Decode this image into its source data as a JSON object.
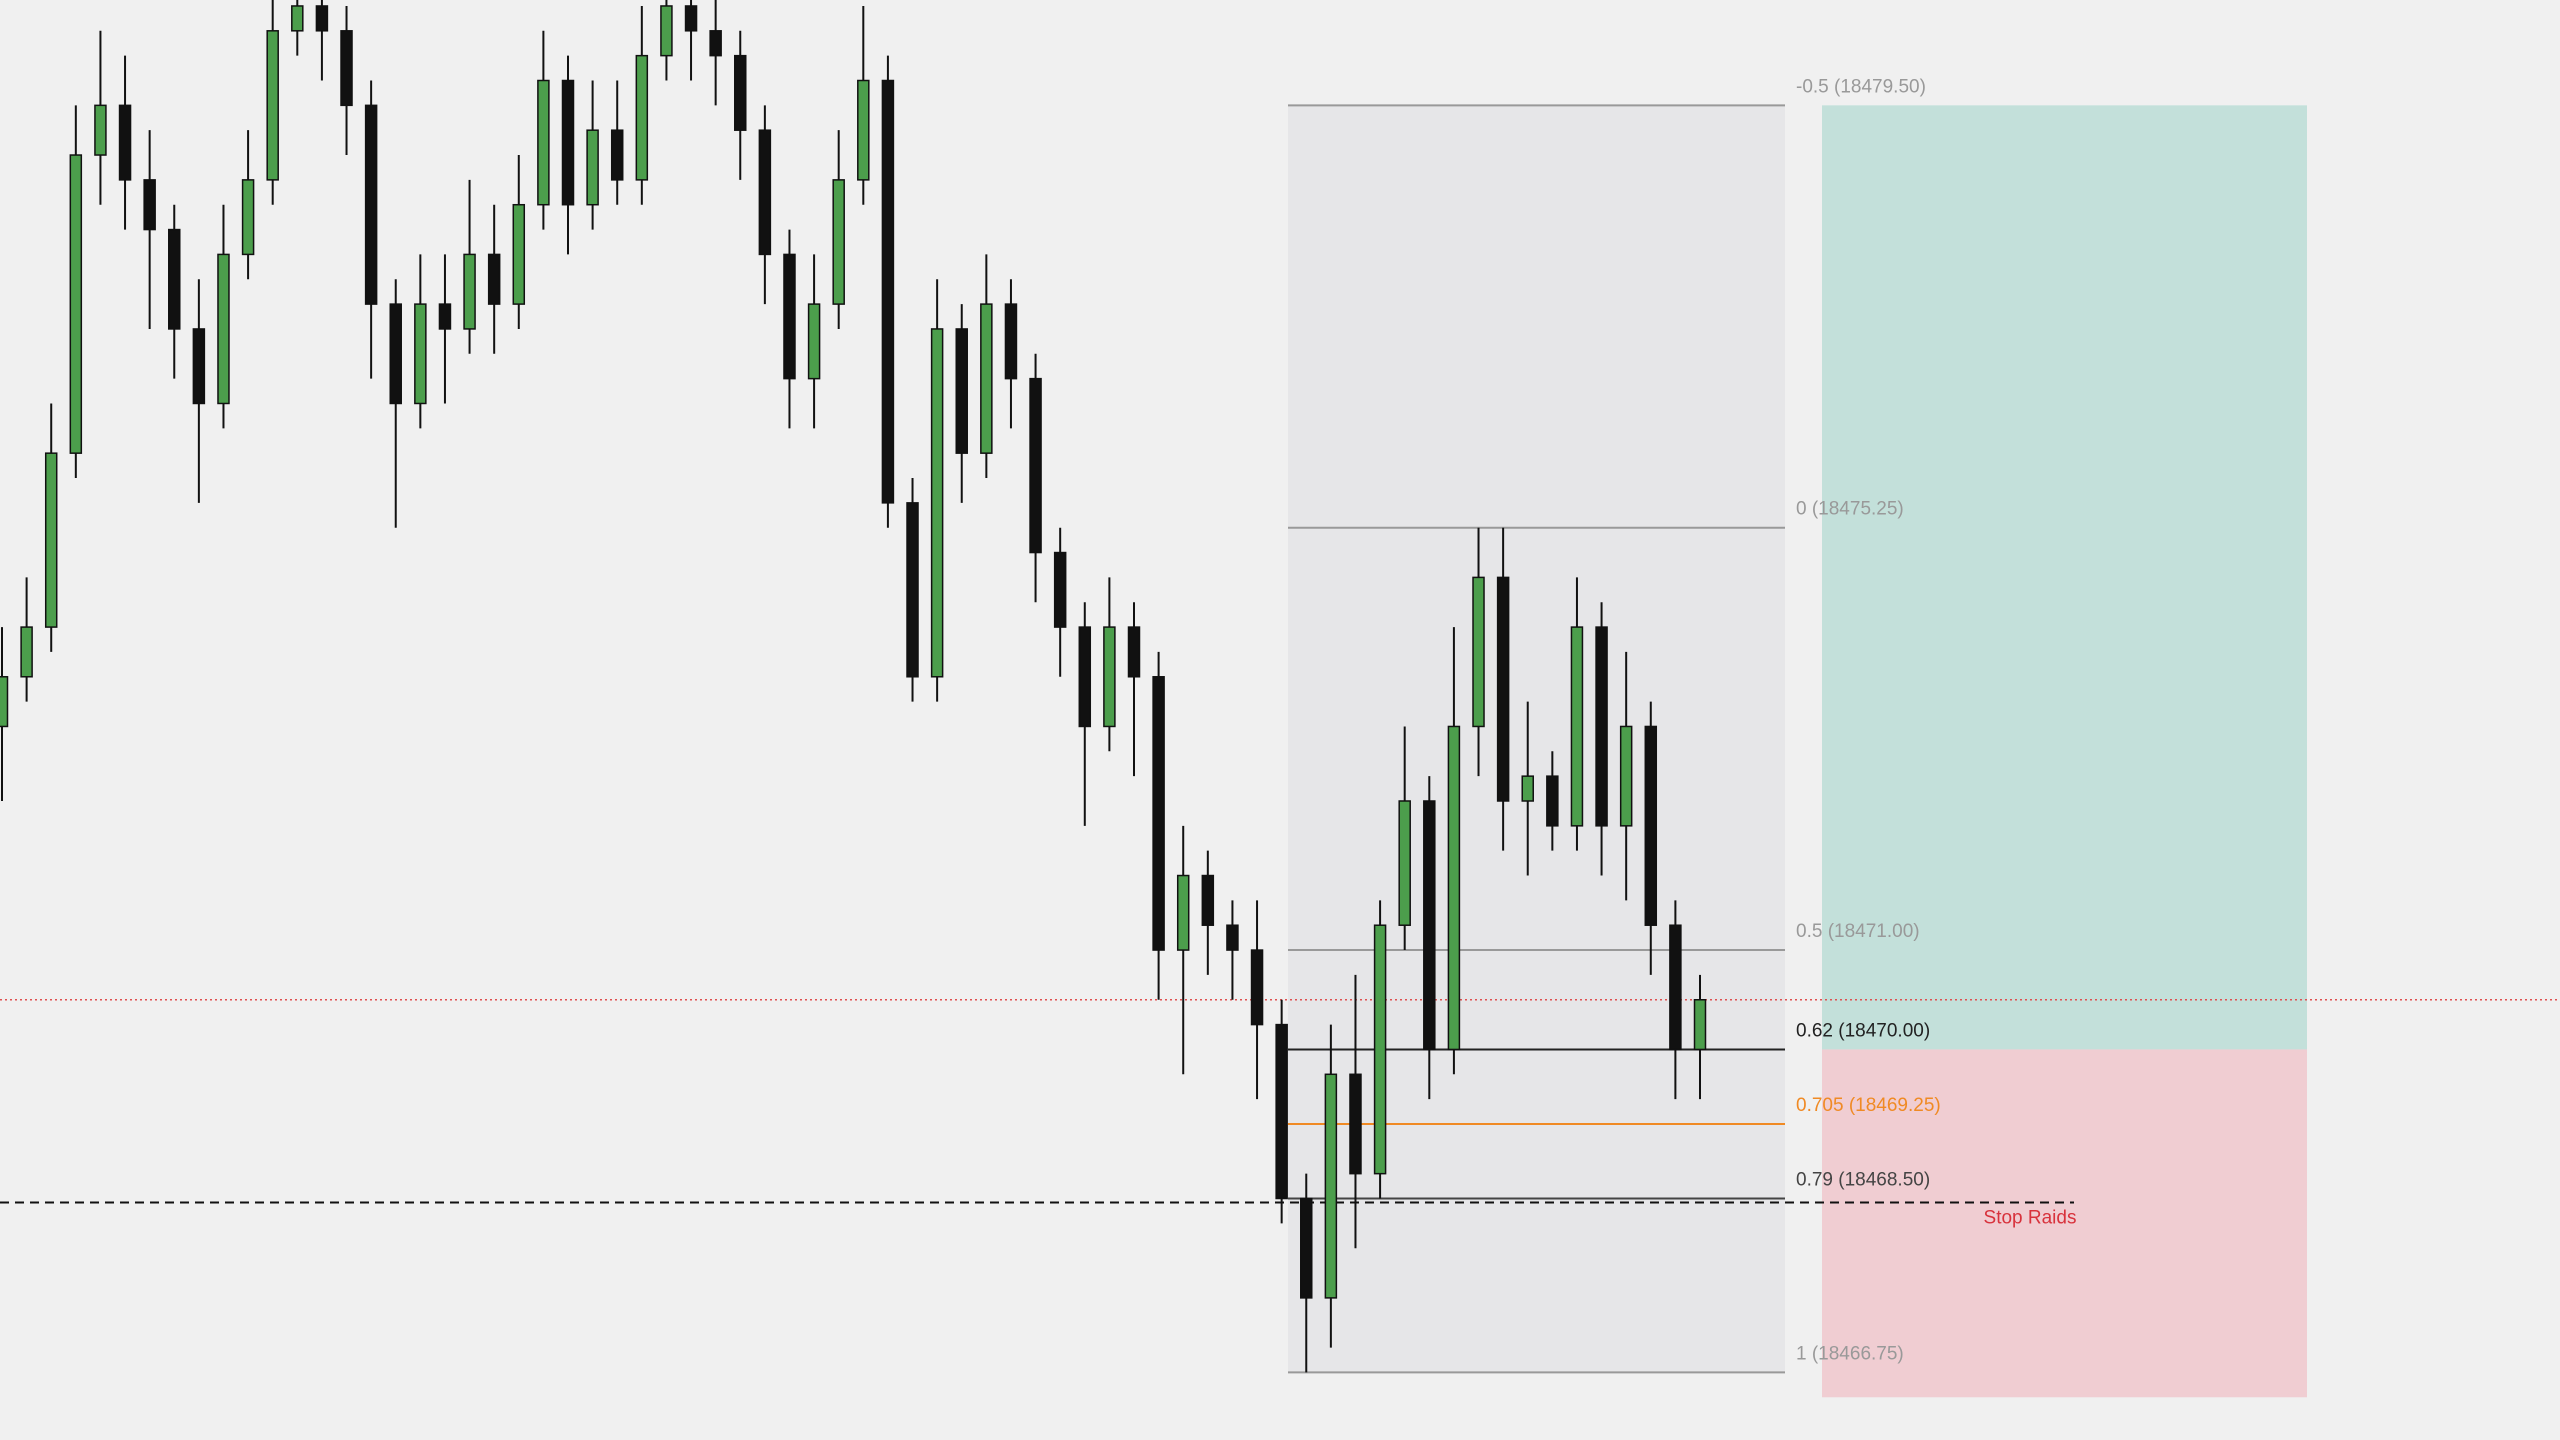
{
  "chart_data": {
    "type": "candlestick",
    "ylim": [
      18466.07,
      18480.56
    ],
    "bull_color": "#4c9e4c",
    "bear_color": "#111111",
    "open": [
      18473.25,
      18473.75,
      18474.25,
      18476.0,
      18479.0,
      18479.5,
      18478.75,
      18478.25,
      18477.25,
      18476.5,
      18478.0,
      18478.75,
      18480.25,
      18480.5,
      18480.25,
      18479.5,
      18477.5,
      18476.5,
      18477.5,
      18477.25,
      18478.0,
      18477.5,
      18478.5,
      18479.75,
      18478.5,
      18479.25,
      18478.75,
      18480.0,
      18480.5,
      18480.25,
      18480.0,
      18479.25,
      18478.0,
      18476.75,
      18477.5,
      18478.75,
      18479.75,
      18475.5,
      18473.75,
      18477.25,
      18476.0,
      18477.5,
      18476.75,
      18475.0,
      18474.25,
      18473.25,
      18474.25,
      18473.75,
      18471.0,
      18471.75,
      18471.25,
      18471.0,
      18470.25,
      18468.5,
      18467.5,
      18469.75,
      18468.75,
      18471.25,
      18472.5,
      18470.0,
      18473.25,
      18474.75,
      18472.5,
      18472.75,
      18472.25,
      18474.25,
      18472.25,
      18473.25,
      18471.25,
      18470.0
    ],
    "high": [
      18474.25,
      18474.75,
      18476.5,
      18479.5,
      18480.25,
      18480.0,
      18479.25,
      18478.5,
      18477.75,
      18478.5,
      18479.25,
      18480.75,
      18480.75,
      18480.75,
      18480.5,
      18479.75,
      18477.75,
      18478.0,
      18478.0,
      18478.75,
      18478.5,
      18479.0,
      18480.25,
      18480.0,
      18479.75,
      18479.75,
      18480.5,
      18480.75,
      18480.75,
      18480.75,
      18480.25,
      18479.5,
      18478.25,
      18478.0,
      18479.25,
      18480.5,
      18480.0,
      18475.75,
      18477.75,
      18477.5,
      18478.0,
      18477.75,
      18477.0,
      18475.25,
      18474.5,
      18474.75,
      18474.5,
      18474.0,
      18472.25,
      18472.0,
      18471.5,
      18471.5,
      18470.5,
      18468.75,
      18470.25,
      18470.75,
      18471.5,
      18473.25,
      18472.75,
      18474.25,
      18475.25,
      18475.25,
      18473.5,
      18473.0,
      18474.75,
      18474.5,
      18474.0,
      18473.5,
      18471.5,
      18470.75
    ],
    "low": [
      18472.5,
      18473.5,
      18474.0,
      18475.75,
      18478.5,
      18478.25,
      18477.25,
      18476.75,
      18475.5,
      18476.25,
      18477.75,
      18478.5,
      18480.0,
      18479.75,
      18479.0,
      18476.75,
      18475.25,
      18476.25,
      18476.5,
      18477.0,
      18477.0,
      18477.25,
      18478.25,
      18478.0,
      18478.25,
      18478.5,
      18478.5,
      18479.75,
      18479.75,
      18479.5,
      18478.75,
      18477.5,
      18476.25,
      18476.25,
      18477.25,
      18478.5,
      18475.25,
      18473.5,
      18473.5,
      18475.5,
      18475.75,
      18476.25,
      18474.5,
      18473.75,
      18472.25,
      18473.0,
      18472.75,
      18470.5,
      18469.75,
      18470.75,
      18470.5,
      18469.5,
      18468.25,
      18466.75,
      18467.0,
      18468.0,
      18468.5,
      18471.0,
      18469.5,
      18469.75,
      18472.75,
      18472.0,
      18471.75,
      18472.0,
      18472.0,
      18471.75,
      18471.5,
      18470.75,
      18469.5,
      18469.5
    ],
    "close": [
      18473.75,
      18474.25,
      18476.0,
      18479.0,
      18479.5,
      18478.75,
      18478.25,
      18477.25,
      18476.5,
      18478.0,
      18478.75,
      18480.25,
      18480.5,
      18480.25,
      18479.5,
      18477.5,
      18476.5,
      18477.5,
      18477.25,
      18478.0,
      18477.5,
      18478.5,
      18479.75,
      18478.5,
      18479.25,
      18478.75,
      18480.0,
      18480.5,
      18480.25,
      18480.0,
      18479.25,
      18478.0,
      18476.75,
      18477.5,
      18478.75,
      18479.75,
      18475.5,
      18473.75,
      18477.25,
      18476.0,
      18477.5,
      18476.75,
      18475.0,
      18474.25,
      18473.25,
      18474.25,
      18473.75,
      18471.0,
      18471.75,
      18471.25,
      18471.0,
      18470.25,
      18468.5,
      18467.5,
      18469.75,
      18468.75,
      18471.25,
      18472.5,
      18470.0,
      18473.25,
      18474.75,
      18472.5,
      18472.75,
      18472.25,
      18474.25,
      18472.25,
      18473.25,
      18471.25,
      18470.0,
      18470.5
    ],
    "current_price": 18470.5,
    "fib_levels": [
      {
        "label": "-0.5 (18479.50)",
        "price": 18479.5,
        "color": "#999999"
      },
      {
        "label": "0 (18475.25)",
        "price": 18475.25,
        "color": "#999999"
      },
      {
        "label": "0.5 (18471.00)",
        "price": 18471.0,
        "color": "#999999"
      },
      {
        "label": "0.62 (18470.00)",
        "price": 18470.0,
        "color": "#222222"
      },
      {
        "label": "0.705 (18469.25)",
        "price": 18469.25,
        "color": "#f08a24"
      },
      {
        "label": "0.79 (18468.50)",
        "price": 18468.5,
        "color": "#444444"
      },
      {
        "label": "1 (18466.75)",
        "price": 18466.75,
        "color": "#999999"
      }
    ],
    "position": {
      "entry": 18470.0,
      "target": 18479.5,
      "stop": 18466.5
    },
    "stop_line": {
      "label": "Stop Raids",
      "price": 18468.5
    }
  }
}
